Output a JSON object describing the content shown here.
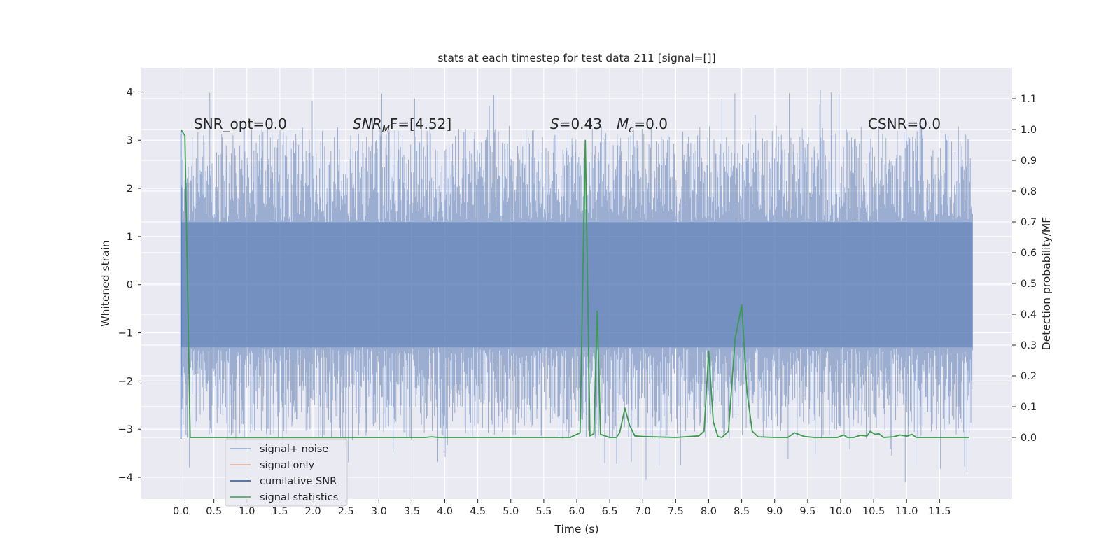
{
  "chart_data": {
    "type": "line",
    "title": "stats at each timestep for test data 211 [signal=[]]",
    "xlabel": "Time (s)",
    "ylabel": "Whitened strain",
    "ylabel_right": "Detection probability/MF",
    "xlim": [
      -0.6,
      12.6
    ],
    "ylim": [
      -4.45,
      4.5
    ],
    "ylim_right": [
      -0.2,
      1.2
    ],
    "xticks": [
      "0.0",
      "0.5",
      "1.0",
      "1.5",
      "2.0",
      "2.5",
      "3.0",
      "3.5",
      "4.0",
      "4.5",
      "5.0",
      "5.5",
      "6.0",
      "6.5",
      "7.0",
      "7.5",
      "8.0",
      "8.5",
      "9.0",
      "9.5",
      "10.0",
      "10.5",
      "11.0",
      "11.5"
    ],
    "yticks": [
      "4",
      "3",
      "2",
      "1",
      "0",
      "−1",
      "−2",
      "−3",
      "−4"
    ],
    "yticks_right": [
      "1.1",
      "1.0",
      "0.9",
      "0.8",
      "0.7",
      "0.6",
      "0.5",
      "0.4",
      "0.3",
      "0.2",
      "0.1",
      "0.0"
    ],
    "grid": true,
    "legend_position": "lower-left",
    "series": [
      {
        "name": "signal+ noise",
        "color": "#4c72b0",
        "style": "dense noise band, axis left",
        "x_range": [
          0.0,
          12.0
        ],
        "core_band": [
          -1.3,
          1.3
        ],
        "envelope": [
          -3.2,
          3.3
        ],
        "extremes": [
          -4.1,
          4.1
        ]
      },
      {
        "name": "signal only",
        "color": "#dd8452",
        "axis": "left",
        "values": []
      },
      {
        "name": "cumilative SNR",
        "color": "#2b4f8f",
        "axis": "left",
        "points": [
          [
            0.0,
            -3.2
          ],
          [
            0.0,
            3.2
          ]
        ]
      },
      {
        "name": "signal statistics",
        "color": "#3d9a4e",
        "axis": "right",
        "points": [
          [
            0.0,
            1.0
          ],
          [
            0.06,
            0.98
          ],
          [
            0.1,
            0.5
          ],
          [
            0.14,
            0.0
          ],
          [
            0.5,
            0.0
          ],
          [
            1.0,
            0.0
          ],
          [
            1.5,
            0.0
          ],
          [
            2.0,
            0.0
          ],
          [
            2.5,
            0.0
          ],
          [
            3.0,
            0.0
          ],
          [
            3.5,
            0.0
          ],
          [
            3.7,
            0.0
          ],
          [
            3.8,
            0.002
          ],
          [
            3.9,
            0.0
          ],
          [
            4.5,
            0.0
          ],
          [
            5.0,
            0.0
          ],
          [
            5.5,
            0.0
          ],
          [
            5.9,
            0.0
          ],
          [
            6.05,
            0.015
          ],
          [
            6.13,
            0.965
          ],
          [
            6.2,
            0.005
          ],
          [
            6.26,
            0.012
          ],
          [
            6.31,
            0.41
          ],
          [
            6.36,
            0.01
          ],
          [
            6.5,
            0.0
          ],
          [
            6.6,
            0.0
          ],
          [
            6.65,
            0.015
          ],
          [
            6.73,
            0.095
          ],
          [
            6.8,
            0.04
          ],
          [
            6.88,
            0.005
          ],
          [
            7.0,
            0.003
          ],
          [
            7.5,
            0.0
          ],
          [
            7.85,
            0.005
          ],
          [
            7.93,
            0.02
          ],
          [
            8.0,
            0.28
          ],
          [
            8.07,
            0.05
          ],
          [
            8.14,
            0.003
          ],
          [
            8.2,
            0.0
          ],
          [
            8.3,
            0.02
          ],
          [
            8.4,
            0.32
          ],
          [
            8.5,
            0.43
          ],
          [
            8.58,
            0.15
          ],
          [
            8.66,
            0.02
          ],
          [
            8.75,
            0.002
          ],
          [
            9.0,
            0.0
          ],
          [
            9.2,
            0.0
          ],
          [
            9.3,
            0.015
          ],
          [
            9.45,
            0.003
          ],
          [
            9.6,
            0.0
          ],
          [
            9.95,
            0.0
          ],
          [
            10.05,
            0.008
          ],
          [
            10.1,
            0.0
          ],
          [
            10.2,
            0.0
          ],
          [
            10.3,
            0.007
          ],
          [
            10.4,
            0.005
          ],
          [
            10.45,
            0.02
          ],
          [
            10.52,
            0.01
          ],
          [
            10.58,
            0.012
          ],
          [
            10.65,
            0.0
          ],
          [
            10.8,
            0.002
          ],
          [
            10.9,
            0.008
          ],
          [
            11.0,
            0.004
          ],
          [
            11.08,
            0.01
          ],
          [
            11.15,
            0.0
          ],
          [
            11.4,
            0.0
          ],
          [
            11.7,
            0.0
          ],
          [
            11.95,
            0.0
          ]
        ]
      }
    ],
    "annotations": {
      "snr_opt": "SNR_opt=0.0",
      "snr_mf_base": "SNR",
      "snr_mf_sub": "M",
      "snr_mf_rest": "F=[4.52]",
      "s_sym": "S",
      "s_val": "=0.43",
      "mc_sym": "M",
      "mc_sub": "c",
      "mc_val": "=0.0",
      "csnr": "CSNR=0.0"
    }
  }
}
